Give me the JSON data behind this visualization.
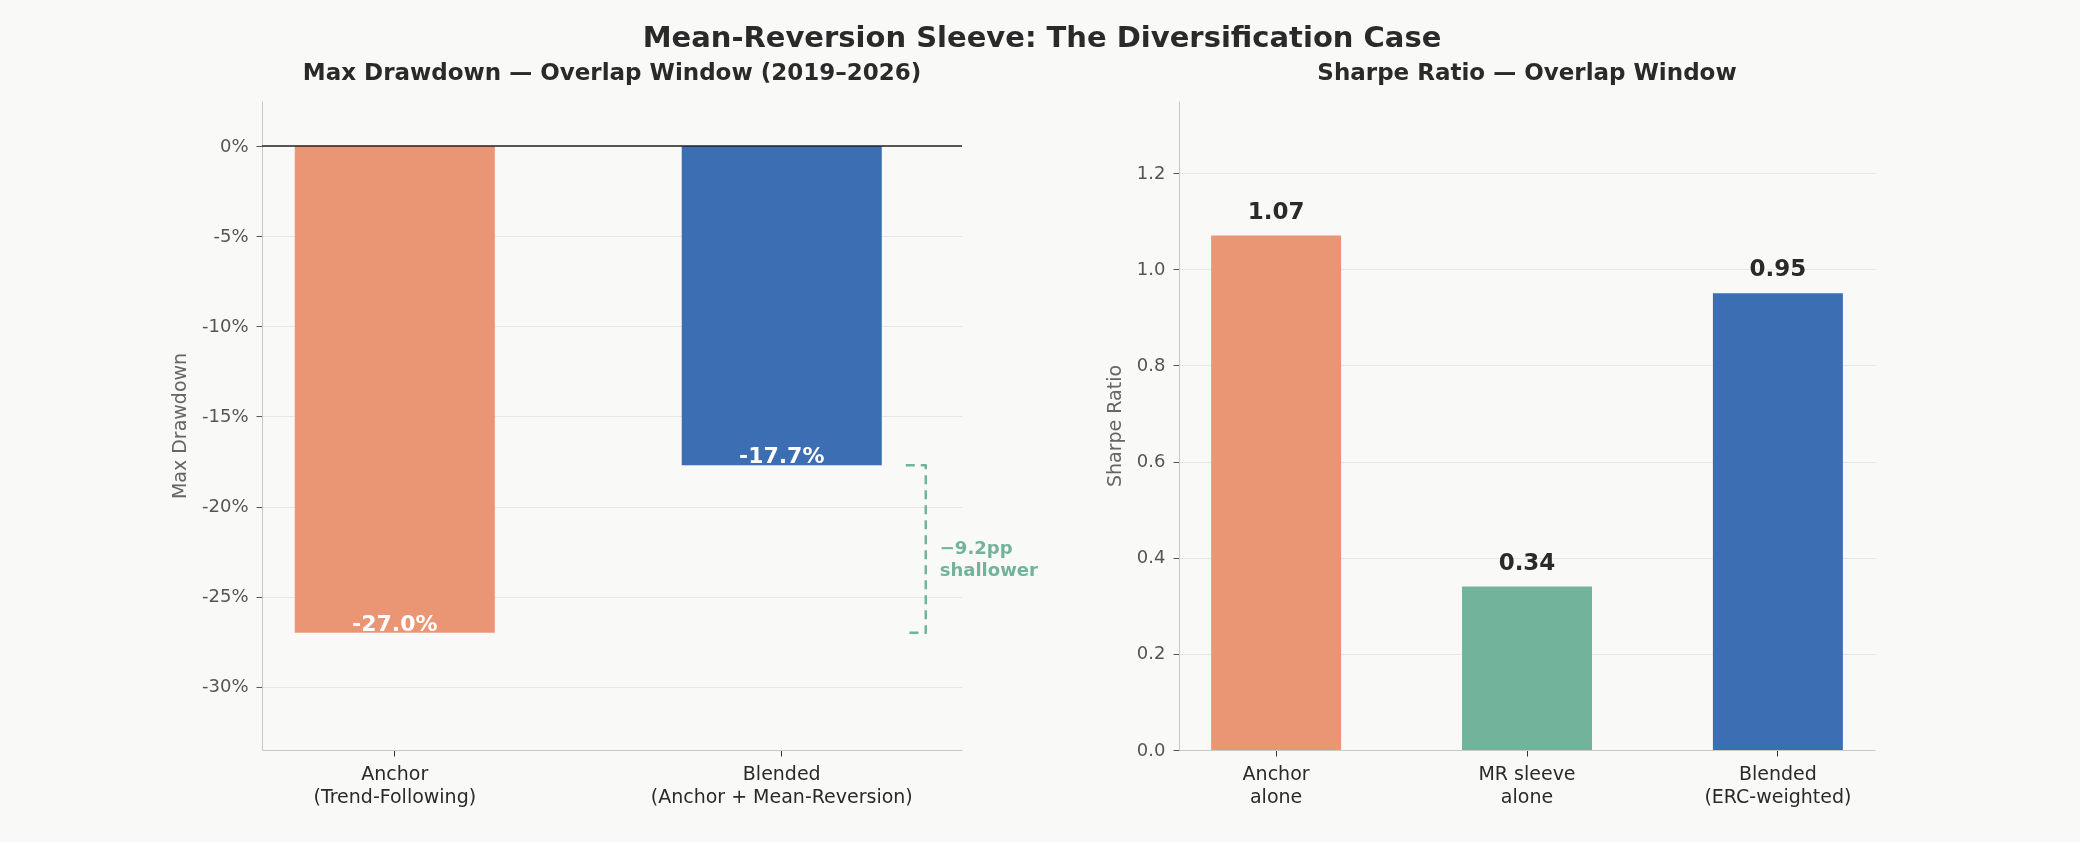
{
  "chart_data": [
    {
      "type": "other",
      "title": "Mean-Reversion Sleeve: The Diversification Case"
    },
    {
      "type": "bar",
      "title": "Max Drawdown — Overlap Window (2019–2026)",
      "ylabel": "Max Drawdown",
      "categories": [
        "Anchor\n(Trend-Following)",
        "Blended\n(Anchor + Mean-Reversion)"
      ],
      "values": [
        -27.0,
        -17.7
      ],
      "colors": [
        "#ea9674",
        "#3c6eb4"
      ],
      "value_labels": [
        "-27.0%",
        "-17.7%"
      ],
      "ylim": [
        -33.5,
        2.5
      ],
      "yticks": [
        {
          "value": 0,
          "label": "0%"
        },
        {
          "value": -5,
          "label": "-5%"
        },
        {
          "value": -10,
          "label": "-10%"
        },
        {
          "value": -15,
          "label": "-15%"
        },
        {
          "value": -20,
          "label": "-20%"
        },
        {
          "value": -25,
          "label": "-25%"
        },
        {
          "value": -30,
          "label": "-30%"
        }
      ],
      "grid": "y",
      "ref_lines": [
        {
          "axis": "y",
          "value": 0,
          "color": "#222222"
        }
      ],
      "annotations": [
        "−9.2pp\nshallower"
      ]
    },
    {
      "type": "bar",
      "title": "Sharpe Ratio — Overlap Window",
      "ylabel": "Sharpe Ratio",
      "categories": [
        "Anchor\nalone",
        "MR sleeve\nalone",
        "Blended\n(ERC-weighted)"
      ],
      "values": [
        1.07,
        0.34,
        0.95
      ],
      "colors": [
        "#ea9674",
        "#72b39b",
        "#3c6eb4"
      ],
      "data_labels": true,
      "ylim": [
        0,
        1.35
      ],
      "yticks": [
        {
          "value": 0,
          "label": "0.0"
        },
        0.2,
        0.4,
        0.6,
        0.8,
        {
          "value": 1,
          "label": "1.0"
        },
        1.2
      ],
      "grid": "y"
    }
  ]
}
